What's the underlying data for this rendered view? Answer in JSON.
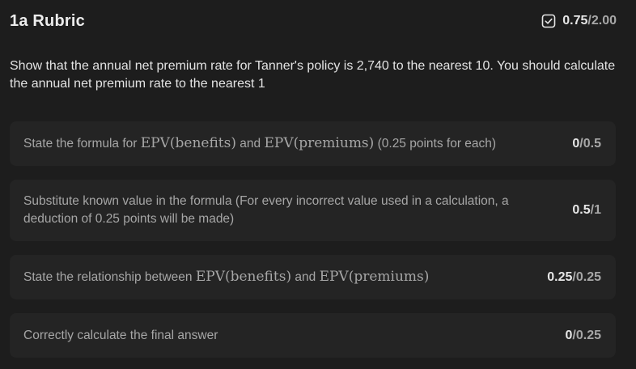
{
  "rubric": {
    "title": "1a Rubric",
    "total_score": "0.75",
    "total_sep": "/",
    "total_max": "2.00",
    "icon": "checkbox-icon"
  },
  "question": "Show that the annual net premium rate for Tanner's policy is 2,740 to the nearest 10. You should calculate the annual net premium rate to the nearest 1",
  "criteria": [
    {
      "text_before": "State the formula for ",
      "math1": "EPV(benefits)",
      "text_mid": " and ",
      "math2": "EPV(premiums)",
      "text_after": " (0.25 points for each)",
      "earned": "0",
      "max": "0.5"
    },
    {
      "text": "Substitute known value in the formula (For every incorrect value used in a calculation, a deduction of 0.25 points will be made)",
      "earned": "0.5",
      "max": "1"
    },
    {
      "text_before": "State the relationship between ",
      "math1": "EPV(benefits)",
      "text_mid": " and ",
      "math2": "EPV(premiums)",
      "earned": "0.25",
      "max": "0.25"
    },
    {
      "text": "Correctly calculate the final answer",
      "earned": "0",
      "max": "0.25"
    }
  ],
  "colors": {
    "background": "#1d1d1d",
    "card": "#242424",
    "text_primary": "#e6e6e6",
    "text_muted": "#a6a6a6"
  }
}
